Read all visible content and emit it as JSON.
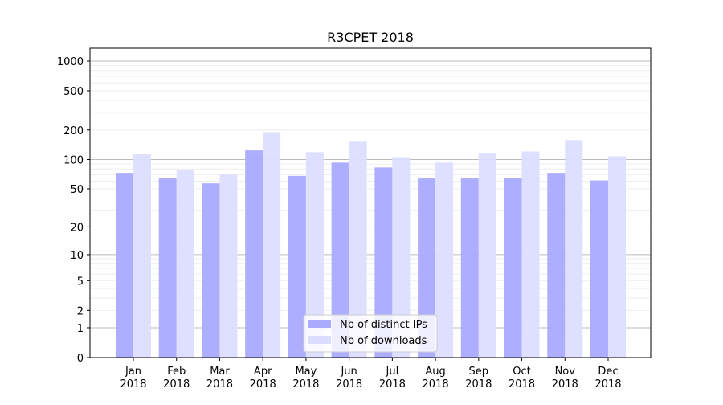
{
  "chart_data": {
    "type": "bar",
    "title": "R3CPET 2018",
    "xlabel": "",
    "ylabel": "",
    "yscale": "log(1+y)",
    "ylim": [
      0,
      1350
    ],
    "yticks": [
      0,
      1,
      2,
      5,
      10,
      20,
      50,
      100,
      200,
      500,
      1000
    ],
    "grid": true,
    "legend_position": "bottom-center",
    "categories": [
      "Jan\n2018",
      "Feb\n2018",
      "Mar\n2018",
      "Apr\n2018",
      "May\n2018",
      "Jun\n2018",
      "Jul\n2018",
      "Aug\n2018",
      "Sep\n2018",
      "Oct\n2018",
      "Nov\n2018",
      "Dec\n2018"
    ],
    "series": [
      {
        "name": "Nb of distinct IPs",
        "color": "#aaaaff",
        "values": [
          73,
          64,
          57,
          124,
          68,
          93,
          83,
          64,
          64,
          65,
          73,
          61
        ]
      },
      {
        "name": "Nb of downloads",
        "color": "#ddddff",
        "values": [
          113,
          79,
          70,
          190,
          119,
          152,
          106,
          93,
          115,
          121,
          158,
          108
        ]
      }
    ]
  }
}
